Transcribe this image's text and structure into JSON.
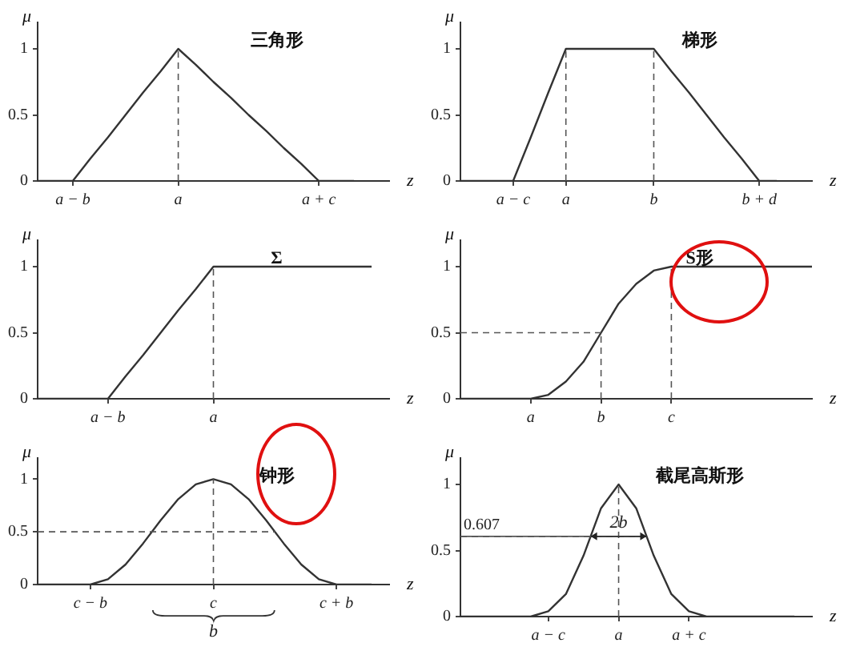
{
  "chart_data": [
    {
      "type": "line",
      "title": "三角形",
      "xlabel": "z",
      "ylabel": "μ",
      "grid": false,
      "legend": false,
      "ylim": [
        0,
        1.2
      ],
      "yticks": [
        0,
        0.5,
        1
      ],
      "categories": [
        null,
        null,
        "a − b",
        null,
        null,
        null,
        null,
        null,
        "a",
        null,
        null,
        null,
        null,
        null,
        null,
        null,
        "a + c",
        null,
        null,
        null,
        null
      ],
      "series": [
        {
          "color": "#333333",
          "values": [
            0,
            0,
            0,
            0.17,
            0.33,
            0.5,
            0.67,
            0.83,
            1,
            0.88,
            0.75,
            0.63,
            0.5,
            0.38,
            0.25,
            0.13,
            0,
            0,
            0,
            null,
            null
          ]
        }
      ],
      "ref_lines": [
        {
          "axis": "x",
          "value": "a",
          "line_style": "dashed"
        }
      ]
    },
    {
      "type": "line",
      "title": "梯形",
      "xlabel": "z",
      "ylabel": "μ",
      "grid": false,
      "legend": false,
      "ylim": [
        0,
        1.2
      ],
      "yticks": [
        0,
        0.5,
        1
      ],
      "categories": [
        null,
        null,
        null,
        "a − c",
        null,
        null,
        "a",
        null,
        null,
        null,
        null,
        "b",
        null,
        null,
        null,
        null,
        null,
        "b + d",
        null,
        null,
        null
      ],
      "series": [
        {
          "color": "#333333",
          "values": [
            0,
            0,
            0,
            0,
            0.33,
            0.67,
            1,
            1,
            1,
            1,
            1,
            1,
            0.83,
            0.67,
            0.5,
            0.33,
            0.17,
            0,
            0,
            null,
            null
          ]
        }
      ],
      "ref_lines": [
        {
          "axis": "x",
          "value": "a",
          "line_style": "dashed"
        },
        {
          "axis": "x",
          "value": "b",
          "line_style": "dashed"
        }
      ]
    },
    {
      "type": "line",
      "title": "Σ",
      "xlabel": "z",
      "ylabel": "μ",
      "grid": false,
      "legend": false,
      "ylim": [
        0,
        1.2
      ],
      "yticks": [
        0,
        0.5,
        1
      ],
      "categories": [
        null,
        null,
        null,
        null,
        "a − b",
        null,
        null,
        null,
        null,
        null,
        "a",
        null,
        null,
        null,
        null,
        null,
        null,
        null,
        null,
        null,
        null
      ],
      "series": [
        {
          "color": "#333333",
          "values": [
            0,
            0,
            0,
            0,
            0,
            0.17,
            0.33,
            0.5,
            0.67,
            0.83,
            1,
            1,
            1,
            1,
            1,
            1,
            1,
            1,
            1,
            1,
            null
          ]
        }
      ],
      "ref_lines": [
        {
          "axis": "x",
          "value": "a",
          "line_style": "dashed"
        }
      ]
    },
    {
      "type": "line",
      "title": "S形",
      "xlabel": "z",
      "ylabel": "μ",
      "grid": false,
      "legend": false,
      "ylim": [
        0,
        1.2
      ],
      "yticks": [
        0,
        0.5,
        1
      ],
      "categories": [
        null,
        null,
        null,
        null,
        "a",
        null,
        null,
        null,
        "b",
        null,
        null,
        null,
        "c",
        null,
        null,
        null,
        null,
        null,
        null,
        null,
        null
      ],
      "series": [
        {
          "color": "#333333",
          "values": [
            0,
            0,
            0,
            0,
            0,
            0.03,
            0.13,
            0.28,
            0.5,
            0.72,
            0.87,
            0.97,
            1,
            1,
            1,
            1,
            1,
            1,
            1,
            1,
            1
          ]
        }
      ],
      "ref_lines": [
        {
          "axis": "x",
          "value": "b",
          "line_style": "dashed"
        },
        {
          "axis": "x",
          "value": "c",
          "line_style": "dashed"
        },
        {
          "axis": "y",
          "value": 0.5,
          "line_style": "dashed"
        }
      ]
    },
    {
      "type": "line",
      "title": "钟形",
      "xlabel": "z",
      "ylabel": "μ",
      "grid": false,
      "legend": false,
      "ylim": [
        0,
        1.2
      ],
      "yticks": [
        0,
        0.5,
        1
      ],
      "categories": [
        null,
        null,
        null,
        "c − b",
        null,
        null,
        null,
        null,
        null,
        null,
        "c",
        null,
        null,
        null,
        null,
        null,
        null,
        "c + b",
        null,
        null,
        null
      ],
      "series": [
        {
          "color": "#333333",
          "values": [
            0,
            0,
            0,
            0,
            0.05,
            0.19,
            0.39,
            0.61,
            0.81,
            0.95,
            1,
            0.95,
            0.81,
            0.61,
            0.39,
            0.19,
            0.05,
            0,
            0,
            0,
            null
          ]
        }
      ],
      "ref_lines": [
        {
          "axis": "y",
          "value": 0.5,
          "line_style": "dashed"
        },
        {
          "axis": "x",
          "value": "c",
          "line_style": "dashed"
        }
      ],
      "annotations": [
        "b"
      ]
    },
    {
      "type": "line",
      "title": "截尾高斯形",
      "xlabel": "z",
      "ylabel": "μ",
      "grid": false,
      "legend": false,
      "ylim": [
        0,
        1.2
      ],
      "yticks": [
        0,
        0.5,
        1
      ],
      "categories": [
        null,
        null,
        null,
        null,
        null,
        "a − c",
        null,
        null,
        null,
        "a",
        null,
        null,
        null,
        "a + c",
        null,
        null,
        null,
        null,
        null,
        null,
        null
      ],
      "series": [
        {
          "color": "#333333",
          "values": [
            0,
            0,
            0,
            0,
            0,
            0.04,
            0.17,
            0.46,
            0.82,
            1,
            0.82,
            0.46,
            0.17,
            0.04,
            0,
            0,
            0,
            0,
            0,
            0,
            null
          ]
        }
      ],
      "ref_lines": [
        {
          "axis": "y",
          "value": 0.607,
          "label": "0.607",
          "line_style": "dashed"
        },
        {
          "axis": "x",
          "value": "a",
          "line_style": "dashed"
        }
      ],
      "annotations": [
        {
          "text": "2b",
          "x": "a",
          "y": 0.607
        }
      ]
    }
  ]
}
